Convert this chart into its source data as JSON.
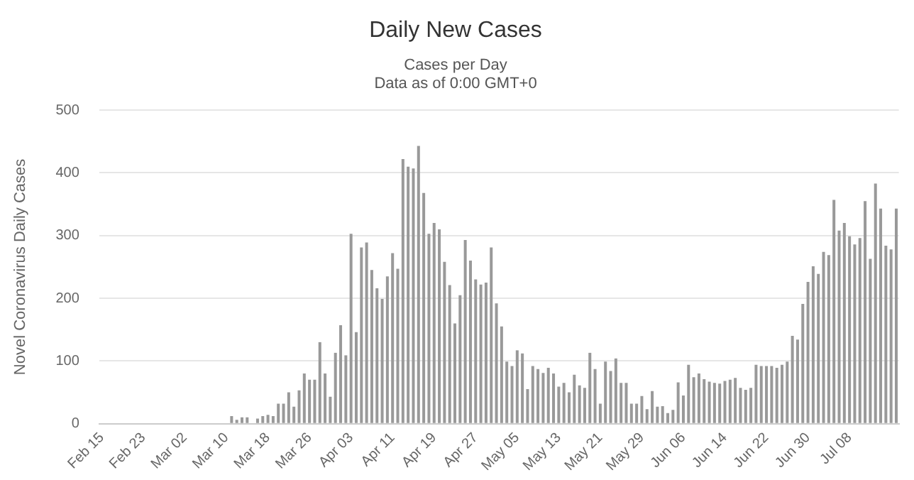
{
  "chart_data": {
    "type": "bar",
    "title": "Daily New Cases",
    "subtitle": "Cases per Day\nData as of 0:00 GMT+0",
    "ylabel": "Novel Coronavirus Daily Cases",
    "categories": [
      "Feb 15",
      null,
      null,
      null,
      null,
      null,
      null,
      null,
      "Feb 23",
      null,
      null,
      null,
      null,
      null,
      null,
      null,
      "Mar 02",
      null,
      null,
      null,
      null,
      null,
      null,
      null,
      "Mar 10",
      null,
      null,
      null,
      null,
      null,
      null,
      null,
      "Mar 18",
      null,
      null,
      null,
      null,
      null,
      null,
      null,
      "Mar 26",
      null,
      null,
      null,
      null,
      null,
      null,
      null,
      "Apr 03",
      null,
      null,
      null,
      null,
      null,
      null,
      null,
      "Apr 11",
      null,
      null,
      null,
      null,
      null,
      null,
      null,
      "Apr 19",
      null,
      null,
      null,
      null,
      null,
      null,
      null,
      "Apr 27",
      null,
      null,
      null,
      null,
      null,
      null,
      null,
      "May 05",
      null,
      null,
      null,
      null,
      null,
      null,
      null,
      "May 13",
      null,
      null,
      null,
      null,
      null,
      null,
      null,
      "May 21",
      null,
      null,
      null,
      null,
      null,
      null,
      null,
      "May 29",
      null,
      null,
      null,
      null,
      null,
      null,
      null,
      "Jun 06",
      null,
      null,
      null,
      null,
      null,
      null,
      null,
      "Jun 14",
      null,
      null,
      null,
      null,
      null,
      null,
      null,
      "Jun 22",
      null,
      null,
      null,
      null,
      null,
      null,
      null,
      "Jun 30",
      null,
      null,
      null,
      null,
      null,
      null,
      null,
      "Jul 08",
      null,
      null,
      null,
      null,
      null,
      null,
      null,
      null,
      null
    ],
    "values": [
      0,
      0,
      0,
      0,
      0,
      0,
      0,
      0,
      0,
      0,
      0,
      0,
      0,
      0,
      0,
      0,
      0,
      0,
      0,
      0,
      0,
      0,
      0,
      0,
      0,
      12,
      6,
      10,
      10,
      0,
      8,
      12,
      14,
      12,
      32,
      32,
      50,
      27,
      53,
      80,
      70,
      70,
      130,
      80,
      43,
      113,
      157,
      109,
      303,
      146,
      281,
      289,
      245,
      216,
      199,
      235,
      272,
      247,
      422,
      410,
      407,
      443,
      368,
      303,
      320,
      310,
      258,
      221,
      160,
      205,
      293,
      260,
      230,
      222,
      225,
      281,
      192,
      155,
      99,
      92,
      117,
      112,
      55,
      92,
      87,
      81,
      89,
      80,
      59,
      65,
      50,
      78,
      61,
      57,
      113,
      87,
      32,
      99,
      84,
      104,
      65,
      65,
      32,
      32,
      44,
      23,
      52,
      27,
      28,
      17,
      22,
      66,
      45,
      94,
      74,
      80,
      71,
      67,
      65,
      64,
      68,
      70,
      73,
      57,
      54,
      57,
      94,
      92,
      92,
      92,
      89,
      94,
      99,
      140,
      134,
      191,
      226,
      251,
      239,
      274,
      269,
      357,
      308,
      320,
      299,
      286,
      296,
      355,
      263,
      383,
      343,
      284,
      278,
      343
    ],
    "color": "#999999",
    "ylim": [
      0,
      500
    ],
    "yticks": [
      0,
      100,
      200,
      300,
      400,
      500
    ],
    "grid": "y"
  }
}
